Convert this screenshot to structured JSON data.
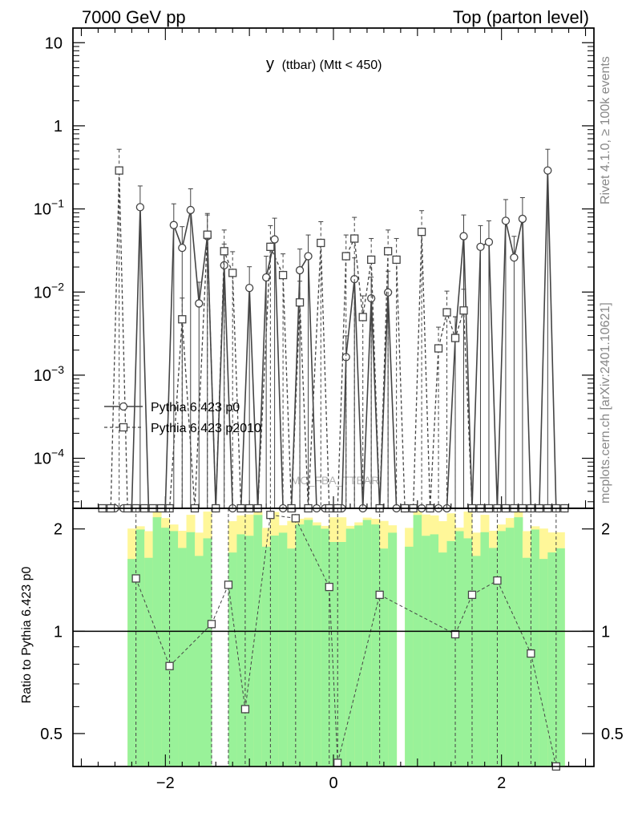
{
  "header": {
    "left": "7000 GeV pp",
    "right": "Top (parton level)"
  },
  "side_labels": {
    "top": "Rivet 4.1.0, ≥ 100k events",
    "bottom": "mcplots.cern.ch [arXiv:2401.10621]"
  },
  "chart_data": {
    "type": "line",
    "title_main": "y",
    "title_sub": "(ttbar) (Mtt < 450)",
    "watermark": "MC_FBA_TTBAR",
    "xlim": [
      -3.1,
      3.1
    ],
    "x_ticks": [
      -2,
      0,
      2
    ],
    "x_tick_labels": [
      "−2",
      "0",
      "2"
    ],
    "main_panel": {
      "yscale": "log",
      "ylim": [
        2.5e-05,
        15
      ],
      "y_ticks": [
        10,
        1,
        0.1,
        0.01,
        0.001,
        0.0001
      ],
      "y_tick_labels": [
        {
          "base": "10",
          "exp": ""
        },
        {
          "base": "1",
          "exp": ""
        },
        {
          "base": "10",
          "exp": "−1"
        },
        {
          "base": "10",
          "exp": "−2"
        },
        {
          "base": "10",
          "exp": "−3"
        },
        {
          "base": "10",
          "exp": "−4"
        }
      ],
      "series": [
        {
          "name": "Pythia 6.423 p0",
          "style": "solid",
          "marker": "circle",
          "color": "#444444",
          "points": [
            [
              -2.7,
              0
            ],
            [
              -2.6,
              0
            ],
            [
              -2.5,
              0
            ],
            [
              -2.4,
              0
            ],
            [
              -2.3,
              0.105
            ],
            [
              -2.2,
              0
            ],
            [
              -2.1,
              0
            ],
            [
              -2.0,
              0
            ],
            [
              -1.9,
              0.064
            ],
            [
              -1.8,
              0.034
            ],
            [
              -1.7,
              0.097
            ],
            [
              -1.6,
              0.0073
            ],
            [
              -1.5,
              0.047
            ],
            [
              -1.4,
              0
            ],
            [
              -1.3,
              0.021
            ],
            [
              -1.2,
              0
            ],
            [
              -1.1,
              0
            ],
            [
              -1.0,
              0.0112
            ],
            [
              -0.9,
              0
            ],
            [
              -0.8,
              0.015
            ],
            [
              -0.7,
              0.043
            ],
            [
              -0.6,
              0
            ],
            [
              -0.5,
              0
            ],
            [
              -0.4,
              0.0183
            ],
            [
              -0.3,
              0.027
            ],
            [
              -0.2,
              0
            ],
            [
              -0.1,
              0
            ],
            [
              0.0,
              0
            ],
            [
              0.1,
              0
            ],
            [
              0.15,
              0.00165
            ],
            [
              0.25,
              0.0143
            ],
            [
              0.35,
              0
            ],
            [
              0.45,
              0.0084
            ],
            [
              0.55,
              0
            ],
            [
              0.65,
              0.0099
            ],
            [
              0.75,
              0
            ],
            [
              0.85,
              0
            ],
            [
              0.95,
              0
            ],
            [
              1.05,
              0
            ],
            [
              1.15,
              0
            ],
            [
              1.25,
              0
            ],
            [
              1.35,
              0
            ],
            [
              1.45,
              0.0028
            ],
            [
              1.55,
              0.047
            ],
            [
              1.65,
              0
            ],
            [
              1.75,
              0.035
            ],
            [
              1.85,
              0.04
            ],
            [
              1.95,
              0
            ],
            [
              2.05,
              0.072
            ],
            [
              2.15,
              0.026
            ],
            [
              2.25,
              0.076
            ],
            [
              2.35,
              0
            ],
            [
              2.45,
              0
            ],
            [
              2.55,
              0.29
            ],
            [
              2.65,
              0
            ],
            [
              2.75,
              0
            ]
          ]
        },
        {
          "name": "Pythia 6.423 p2010",
          "style": "dashed",
          "marker": "square",
          "color": "#444444",
          "points": [
            [
              -2.75,
              0
            ],
            [
              -2.65,
              0
            ],
            [
              -2.55,
              0.29
            ],
            [
              -2.45,
              0
            ],
            [
              -2.35,
              0
            ],
            [
              -2.25,
              0
            ],
            [
              -2.15,
              0
            ],
            [
              -2.05,
              0
            ],
            [
              -1.95,
              0
            ],
            [
              -1.8,
              0.0047
            ],
            [
              -1.65,
              0
            ],
            [
              -1.5,
              0.049
            ],
            [
              -1.4,
              0
            ],
            [
              -1.3,
              0.031
            ],
            [
              -1.2,
              0.017
            ],
            [
              -1.1,
              0
            ],
            [
              -1.0,
              0
            ],
            [
              -0.9,
              0
            ],
            [
              -0.75,
              0.035
            ],
            [
              -0.6,
              0.016
            ],
            [
              -0.5,
              0
            ],
            [
              -0.4,
              0.0075
            ],
            [
              -0.3,
              0
            ],
            [
              -0.15,
              0.039
            ],
            [
              -0.05,
              0
            ],
            [
              0.05,
              0
            ],
            [
              0.15,
              0.027
            ],
            [
              0.25,
              0.044
            ],
            [
              0.35,
              0.005
            ],
            [
              0.45,
              0.0245
            ],
            [
              0.55,
              0
            ],
            [
              0.65,
              0.031
            ],
            [
              0.75,
              0.0245
            ],
            [
              0.85,
              0
            ],
            [
              0.95,
              0
            ],
            [
              1.05,
              0.053
            ],
            [
              1.15,
              0
            ],
            [
              1.25,
              0.0021
            ],
            [
              1.35,
              0.0057
            ],
            [
              1.45,
              0.0028
            ],
            [
              1.55,
              0.006
            ],
            [
              1.65,
              0
            ],
            [
              1.75,
              0
            ],
            [
              1.85,
              0
            ],
            [
              1.95,
              0
            ],
            [
              2.05,
              0
            ],
            [
              2.15,
              0
            ],
            [
              2.25,
              0
            ],
            [
              2.35,
              0
            ],
            [
              2.45,
              0
            ],
            [
              2.55,
              0
            ],
            [
              2.65,
              0
            ],
            [
              2.75,
              0
            ]
          ]
        }
      ]
    },
    "ratio_panel": {
      "ylabel": "Ratio to Pythia 6.423 p0",
      "yscale": "log",
      "ylim": [
        0.4,
        2.3
      ],
      "y_ticks": [
        2,
        1,
        0.5
      ],
      "y_tick_labels": [
        "2",
        "1",
        "0.5"
      ],
      "reference_line": 1,
      "green_band_color": "#99f299",
      "yellow_band_color": "#fff799",
      "points": [
        [
          -2.35,
          1.43
        ],
        [
          -1.95,
          0.79
        ],
        [
          -1.45,
          1.05
        ],
        [
          -1.25,
          1.37
        ],
        [
          -1.05,
          0.59
        ],
        [
          -0.75,
          2.2
        ],
        [
          -0.45,
          2.15
        ],
        [
          -0.05,
          1.35
        ],
        [
          0.05,
          0.41
        ],
        [
          0.55,
          1.28
        ],
        [
          1.45,
          0.98
        ],
        [
          1.65,
          1.28
        ],
        [
          1.95,
          1.41
        ],
        [
          2.35,
          0.86
        ],
        [
          2.65,
          0.39
        ]
      ]
    }
  },
  "legend": [
    {
      "label": "Pythia 6.423 p0",
      "style": "solid",
      "marker": "circle"
    },
    {
      "label": "Pythia 6.423 p2010",
      "style": "dashed",
      "marker": "square"
    }
  ]
}
